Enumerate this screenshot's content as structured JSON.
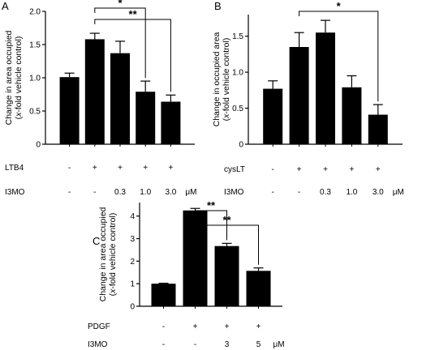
{
  "colors": {
    "bar": "#000000",
    "axis": "#000000",
    "background": "#ffffff"
  },
  "chart_data": [
    {
      "panel": "A",
      "type": "bar",
      "ylabel_lines": [
        "Change in area occupied",
        "(x-fold vehicle control)"
      ],
      "ylim": [
        0,
        2.0
      ],
      "yticks": [
        0,
        0.5,
        1.0,
        1.5,
        2.0
      ],
      "ytick_labels": [
        "0",
        "0.5",
        "1.0",
        "1.5",
        "2.0"
      ],
      "values": [
        1.01,
        1.58,
        1.37,
        0.79,
        0.64
      ],
      "errors": [
        0.06,
        0.09,
        0.18,
        0.16,
        0.1
      ],
      "conditions": [
        {
          "label": "LTB4",
          "values": [
            "-",
            "+",
            "+",
            "+",
            "+"
          ]
        },
        {
          "label": "I3MO",
          "values": [
            "-",
            "-",
            "0.3",
            "1.0",
            "3.0"
          ],
          "unit": "μM"
        }
      ],
      "significance": [
        {
          "from": 1,
          "to": 3,
          "label": "*"
        },
        {
          "from": 1,
          "to": 4,
          "label": "**"
        }
      ]
    },
    {
      "panel": "B",
      "type": "bar",
      "ylabel_lines": [
        "Change in occupied area",
        "(x-fold vehicle control)"
      ],
      "ylim": [
        0,
        1.8
      ],
      "yticks": [
        0,
        0.5,
        1.0,
        1.5
      ],
      "ytick_labels": [
        "0",
        "0.5",
        "1.0",
        "1.5"
      ],
      "values": [
        0.77,
        1.35,
        1.55,
        0.79,
        0.41
      ],
      "errors": [
        0.11,
        0.2,
        0.17,
        0.16,
        0.14
      ],
      "conditions": [
        {
          "label": "cysLT",
          "values": [
            "-",
            "+",
            "+",
            "+",
            "+"
          ]
        },
        {
          "label": "I3MO",
          "values": [
            "-",
            "-",
            "0.3",
            "1.0",
            "3.0"
          ],
          "unit": "μM"
        }
      ],
      "significance": [
        {
          "from": 1,
          "to": 4,
          "label": "*"
        }
      ]
    },
    {
      "panel": "C",
      "type": "bar",
      "ylabel_lines": [
        "Change in area occupied",
        "(x-fold vehicle control)"
      ],
      "ylim": [
        0,
        4.6
      ],
      "yticks": [
        0,
        1,
        2,
        3,
        4
      ],
      "ytick_labels": [
        "0",
        "1",
        "2",
        "3",
        "4"
      ],
      "values": [
        1.0,
        4.25,
        2.67,
        1.57
      ],
      "errors": [
        0.02,
        0.09,
        0.12,
        0.13
      ],
      "conditions": [
        {
          "label": "PDGF",
          "values": [
            "-",
            "+",
            "+",
            "+"
          ]
        },
        {
          "label": "I3MO",
          "values": [
            "-",
            "-",
            "3",
            "5"
          ],
          "unit": "μM"
        }
      ],
      "significance": [
        {
          "from": 1,
          "to": 2,
          "label": "**"
        },
        {
          "from": 1,
          "to": 3,
          "label": "**"
        }
      ]
    }
  ]
}
